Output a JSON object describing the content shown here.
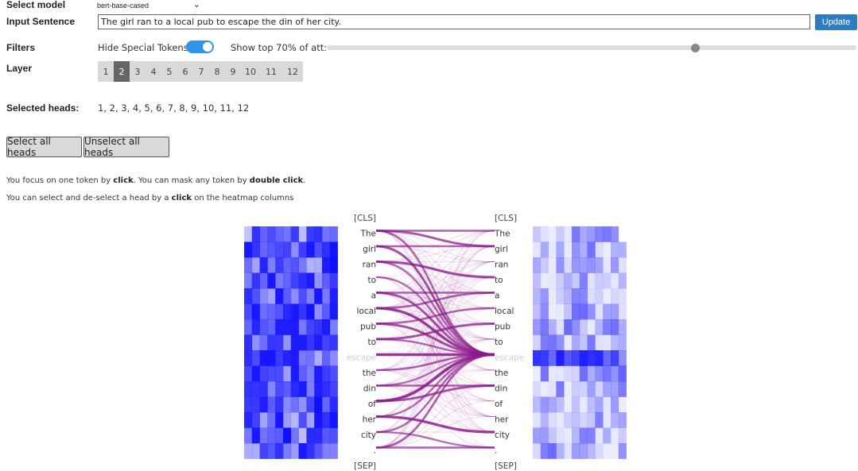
{
  "controls": {
    "select_model_label": "Select model",
    "model_value": "bert-base-cased",
    "input_label": "Input Sentence",
    "sentence": "The girl ran to a local pub to escape the din of her city.",
    "update_label": "Update",
    "filters_label": "Filters",
    "hide_special_label": "Hide Special Tokens",
    "hide_special_on": true,
    "show_top_label": "Show top 70% of att:",
    "show_top_percent": 70,
    "layer_label": "Layer",
    "layers": [
      "1",
      "2",
      "3",
      "4",
      "5",
      "6",
      "7",
      "8",
      "9",
      "10",
      "11",
      "12"
    ],
    "selected_layer": "2",
    "selected_heads_label": "Selected heads:",
    "selected_heads": "1, 2, 3, 4, 5, 6, 7, 8, 9, 10, 11, 12",
    "select_all_label": "Select all heads",
    "unselect_all_label": "Unselect all heads"
  },
  "hints": {
    "line1_a": "You focus on one token by ",
    "line1_b": "click",
    "line1_c": ". You can mask any token by ",
    "line1_d": "double click",
    "line1_e": ".",
    "line2_a": "You can select and de-select a head by a ",
    "line2_b": "click",
    "line2_c": " on the heatmap columns"
  },
  "tokens": [
    "[CLS]",
    "The",
    "girl",
    "ran",
    "to",
    "a",
    "local",
    "pub",
    "to",
    "escape",
    "the",
    "din",
    "of",
    "her",
    "city",
    ".",
    "[SEP]"
  ],
  "masked_token_index": 9,
  "colors": {
    "accent": "#2f7bbf",
    "toggle": "#2f95e8",
    "attention_line": "#8b1a8b",
    "heatmap_base": "#1010ff"
  }
}
